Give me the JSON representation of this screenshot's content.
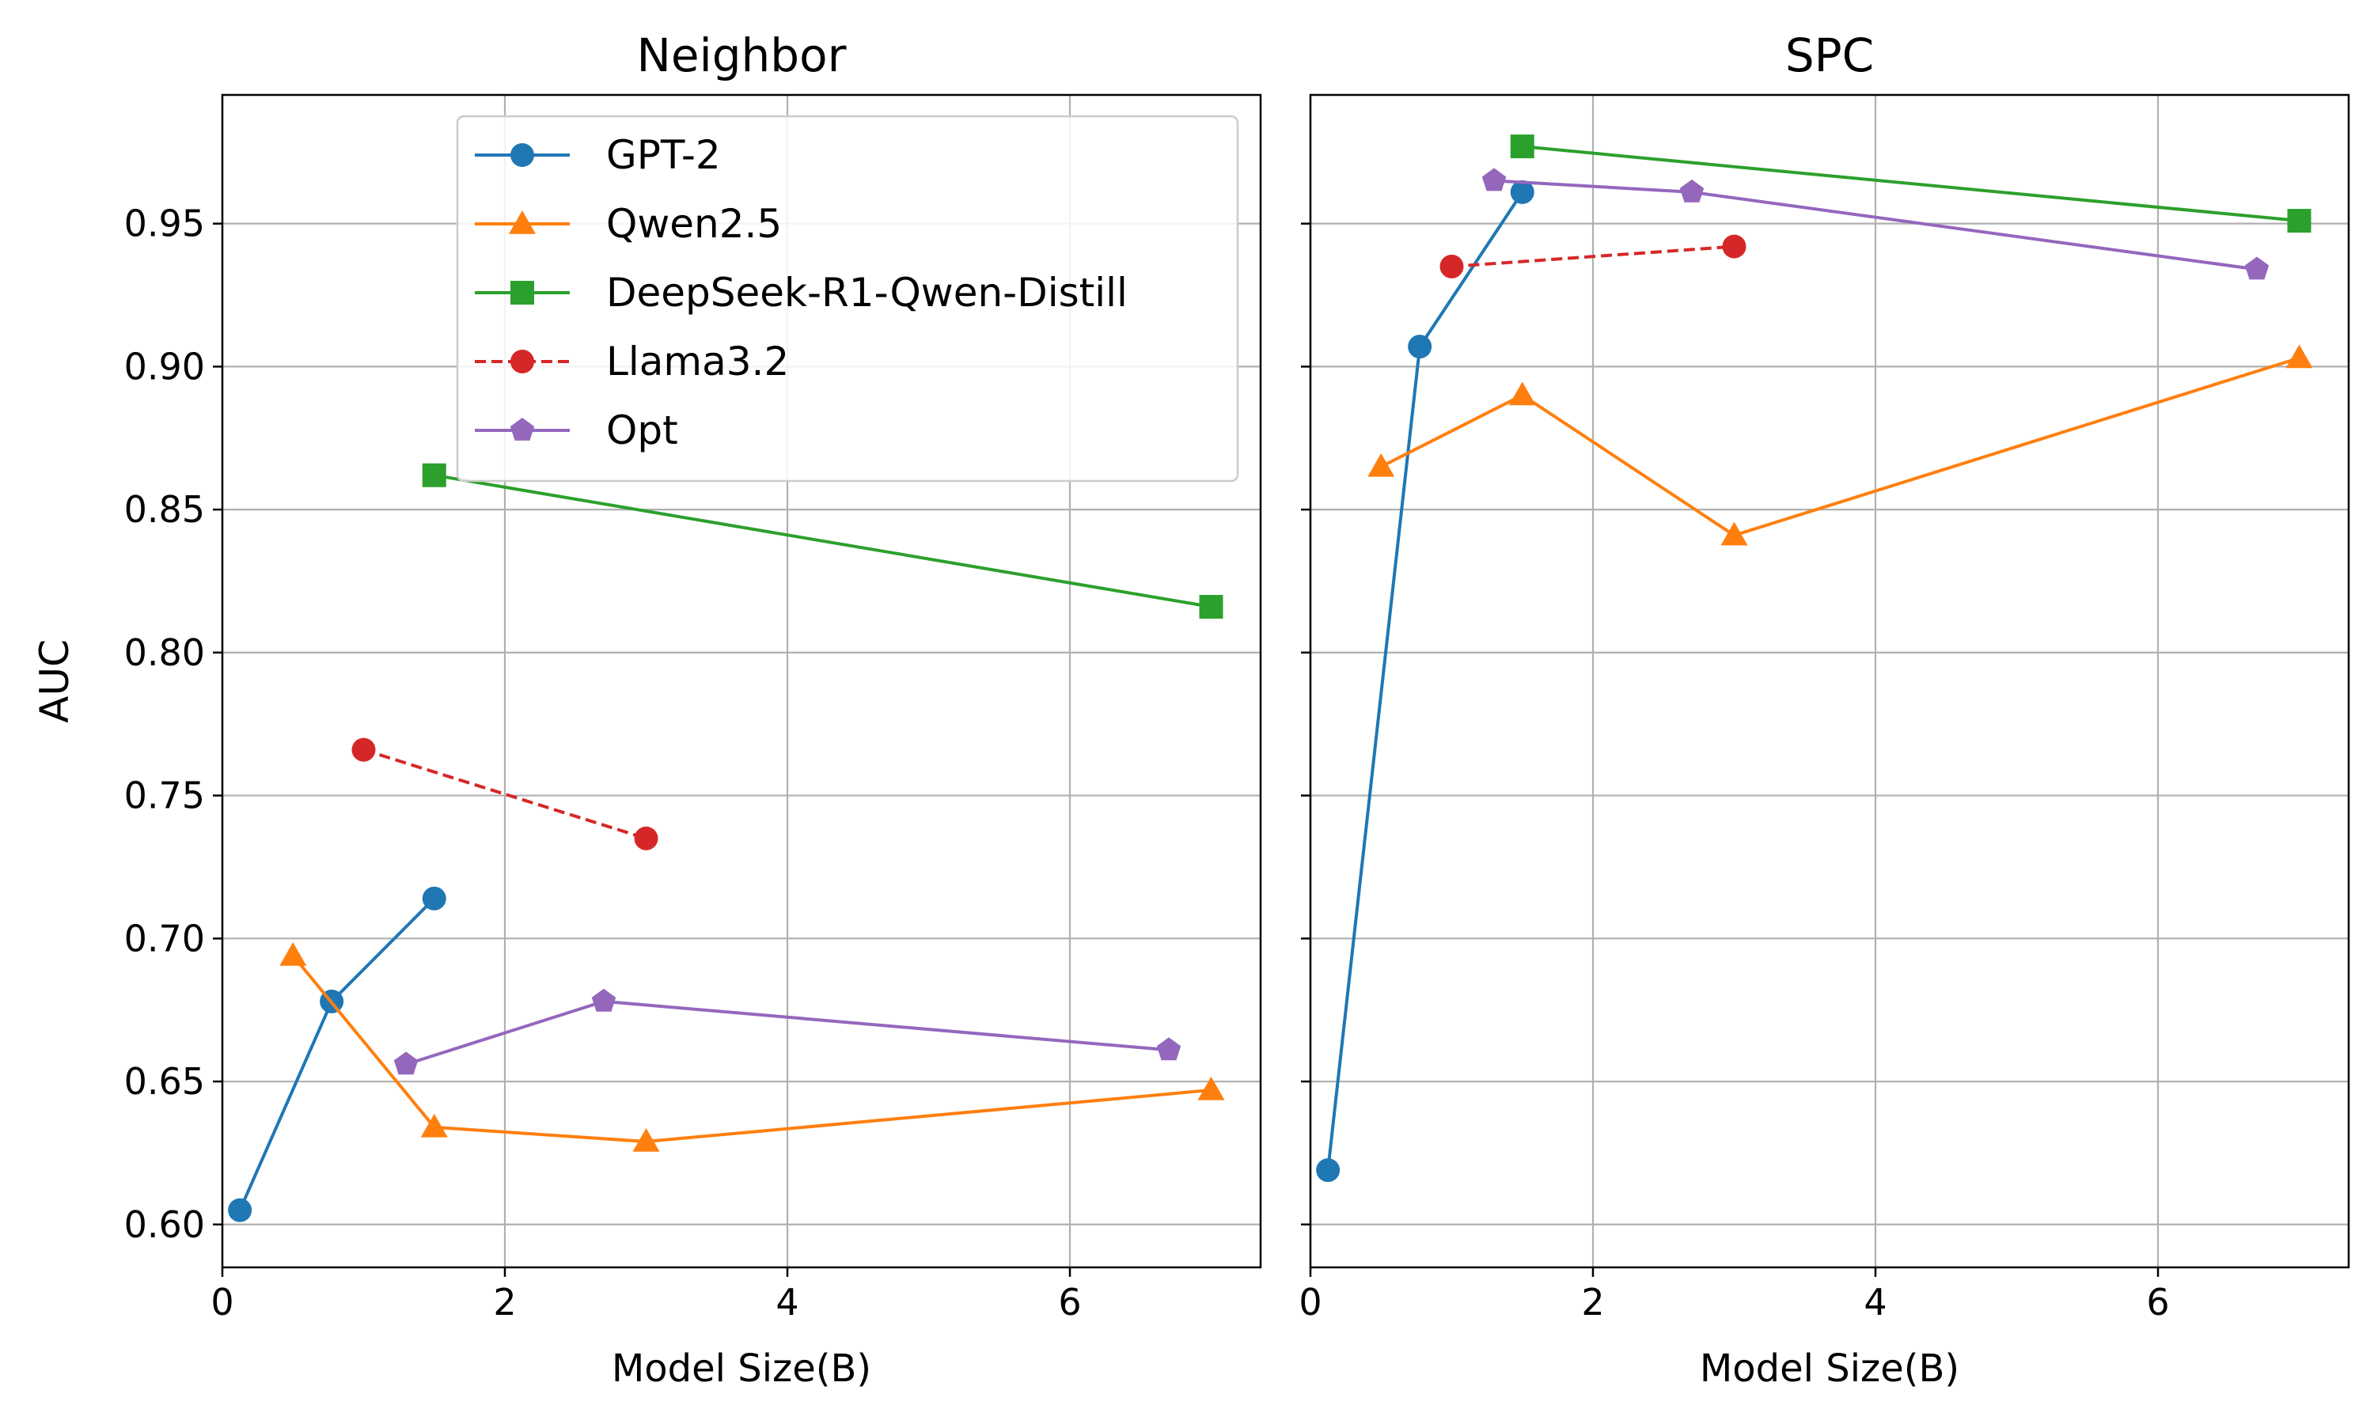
{
  "chart_data": [
    {
      "type": "line",
      "title": "Neighbor",
      "xlabel": "Model Size(B)",
      "ylabel": "AUC",
      "xlim": [
        0,
        7.35
      ],
      "ylim": [
        0.585,
        0.995
      ],
      "xticks": [
        0,
        2,
        4,
        6
      ],
      "yticks": [
        0.6,
        0.65,
        0.7,
        0.75,
        0.8,
        0.85,
        0.9,
        0.95
      ],
      "ytick_labels": [
        "0.60",
        "0.65",
        "0.70",
        "0.75",
        "0.80",
        "0.85",
        "0.90",
        "0.95"
      ],
      "grid": true,
      "legend": "top-center",
      "series": [
        {
          "name": "GPT-2",
          "color": "#1f77b4",
          "marker": "circle",
          "dashed": false,
          "x": [
            0.124,
            0.774,
            1.5
          ],
          "y": [
            0.605,
            0.678,
            0.714
          ]
        },
        {
          "name": "Qwen2.5",
          "color": "#ff7f0e",
          "marker": "triangle",
          "dashed": false,
          "x": [
            0.5,
            1.5,
            3,
            7
          ],
          "y": [
            0.694,
            0.634,
            0.629,
            0.647
          ]
        },
        {
          "name": "DeepSeek-R1-Qwen-Distill",
          "color": "#2ca02c",
          "marker": "square",
          "dashed": false,
          "x": [
            1.5,
            7
          ],
          "y": [
            0.862,
            0.816
          ]
        },
        {
          "name": "Llama3.2",
          "color": "#d62728",
          "marker": "circle",
          "dashed": true,
          "x": [
            1,
            3
          ],
          "y": [
            0.766,
            0.735
          ]
        },
        {
          "name": "Opt",
          "color": "#9467bd",
          "marker": "pentagon",
          "dashed": false,
          "x": [
            1.3,
            2.7,
            6.7
          ],
          "y": [
            0.656,
            0.678,
            0.661
          ]
        }
      ]
    },
    {
      "type": "line",
      "title": "SPC",
      "xlabel": "Model Size(B)",
      "ylabel": "",
      "xlim": [
        0,
        7.35
      ],
      "ylim": [
        0.585,
        0.995
      ],
      "xticks": [
        0,
        2,
        4,
        6
      ],
      "yticks": [
        0.6,
        0.65,
        0.7,
        0.75,
        0.8,
        0.85,
        0.9,
        0.95
      ],
      "ytick_labels": [],
      "grid": true,
      "series": [
        {
          "name": "GPT-2",
          "color": "#1f77b4",
          "marker": "circle",
          "dashed": false,
          "x": [
            0.124,
            0.774,
            1.5
          ],
          "y": [
            0.619,
            0.907,
            0.961
          ]
        },
        {
          "name": "Qwen2.5",
          "color": "#ff7f0e",
          "marker": "triangle",
          "dashed": false,
          "x": [
            0.5,
            1.5,
            3,
            7
          ],
          "y": [
            0.865,
            0.89,
            0.841,
            0.903
          ]
        },
        {
          "name": "DeepSeek-R1-Qwen-Distill",
          "color": "#2ca02c",
          "marker": "square",
          "dashed": false,
          "x": [
            1.5,
            7
          ],
          "y": [
            0.977,
            0.951
          ]
        },
        {
          "name": "Llama3.2",
          "color": "#d62728",
          "marker": "circle",
          "dashed": true,
          "x": [
            1,
            3
          ],
          "y": [
            0.935,
            0.942
          ]
        },
        {
          "name": "Opt",
          "color": "#9467bd",
          "marker": "pentagon",
          "dashed": false,
          "x": [
            1.3,
            2.7,
            6.7
          ],
          "y": [
            0.965,
            0.961,
            0.934
          ]
        }
      ]
    }
  ]
}
